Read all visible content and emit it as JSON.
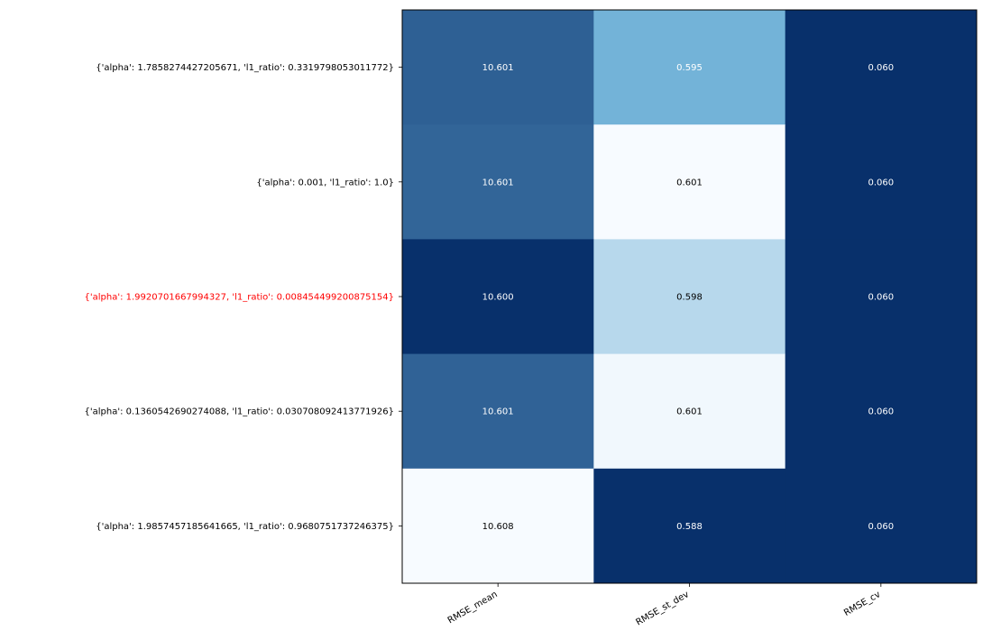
{
  "chart_data": {
    "type": "heatmap",
    "title": "",
    "xlabel": "",
    "ylabel": "",
    "columns": [
      "RMSE_mean",
      "RMSE_st_dev",
      "RMSE_cv"
    ],
    "rows": [
      "{'alpha': 1.7858274427205671, 'l1_ratio': 0.3319798053011772}",
      "{'alpha': 0.001, 'l1_ratio': 1.0}",
      "{'alpha': 1.9920701667994327, 'l1_ratio': 0.008454499200875154}",
      "{'alpha': 0.1360542690274088, 'l1_ratio': 0.030708092413771926}",
      "{'alpha': 1.9857457185641665, 'l1_ratio': 0.9680751737246375}"
    ],
    "highlight_row_index": 2,
    "highlight_color": "#ff0000",
    "values": [
      [
        "10.601",
        "0.595",
        "0.060"
      ],
      [
        "10.601",
        "0.601",
        "0.060"
      ],
      [
        "10.600",
        "0.598",
        "0.060"
      ],
      [
        "10.601",
        "0.601",
        "0.060"
      ],
      [
        "10.608",
        "0.588",
        "0.060"
      ]
    ],
    "colormap": "Blues",
    "color_intensity": [
      [
        0.81,
        0.47,
        1.0
      ],
      [
        0.79,
        0.0,
        1.0
      ],
      [
        1.0,
        0.23,
        1.0
      ],
      [
        0.8,
        0.02,
        1.0
      ],
      [
        0.0,
        1.0,
        1.0
      ]
    ],
    "colorscale": {
      "low": "#f7fbff",
      "mid": "#6baed6",
      "high": "#08306b"
    },
    "grid": false
  }
}
